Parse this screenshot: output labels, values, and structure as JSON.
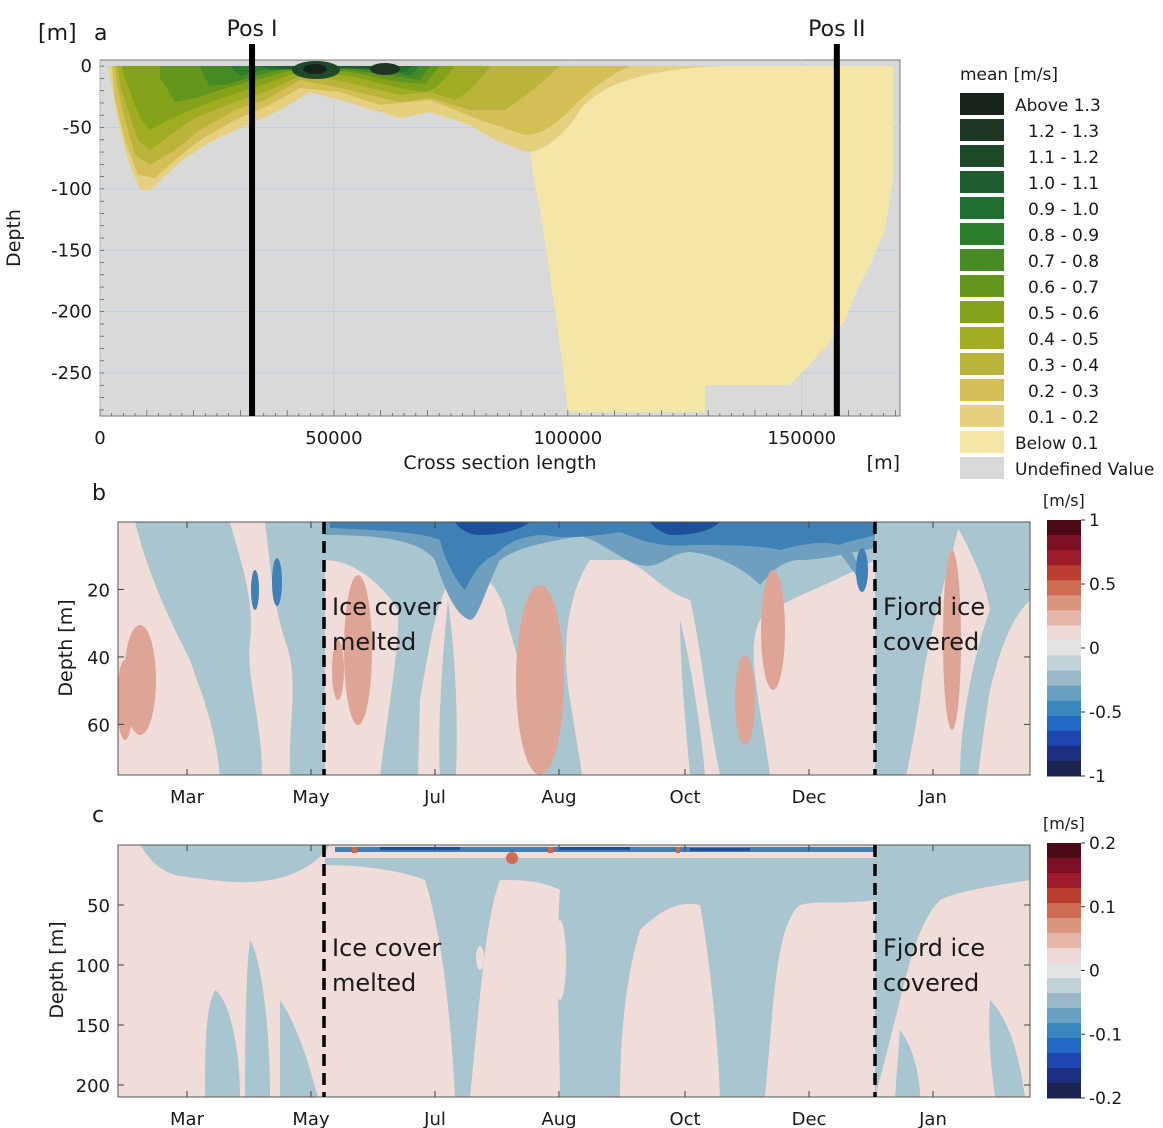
{
  "chart_data": [
    {
      "panel": "a",
      "type": "heatmap",
      "panel_label": "a",
      "ylabel": "Depth",
      "yunit": "[m]",
      "xlabel": "Cross section length",
      "xunit": "[m]",
      "xlim": [
        0,
        171000
      ],
      "ylim": [
        -285,
        5
      ],
      "xticks": [
        0,
        50000,
        100000,
        150000
      ],
      "yticks": [
        0,
        -50,
        -100,
        -150,
        -200,
        -250
      ],
      "grid": true,
      "markers": [
        {
          "label": "Pos I",
          "x": 32500
        },
        {
          "label": "Pos II",
          "x": 157500
        }
      ],
      "undefined_label": "Undefined Value",
      "legend": {
        "title": "mean [m/s]",
        "placement": "right",
        "entries": [
          {
            "label": "Above 1.3",
            "color": "#17231a"
          },
          {
            "label": "1.2 - 1.3",
            "color": "#1d3521"
          },
          {
            "label": "1.1 - 1.2",
            "color": "#1f4a29"
          },
          {
            "label": "1.0 - 1.1",
            "color": "#1f5d30"
          },
          {
            "label": "0.9 - 1.0",
            "color": "#1f7030"
          },
          {
            "label": "0.8 - 0.9",
            "color": "#2c7d2c"
          },
          {
            "label": "0.7 - 0.8",
            "color": "#468a23"
          },
          {
            "label": "0.6 - 0.7",
            "color": "#64951c"
          },
          {
            "label": "0.5 - 0.6",
            "color": "#83a21a"
          },
          {
            "label": "0.4 - 0.5",
            "color": "#a0ac22"
          },
          {
            "label": "0.3 - 0.4",
            "color": "#bbb43a"
          },
          {
            "label": "0.2 - 0.3",
            "color": "#d3bf55"
          },
          {
            "label": "0.1 - 0.2",
            "color": "#e5d07f"
          },
          {
            "label": "Below 0.1",
            "color": "#f3e6a6"
          },
          {
            "label": "Undefined Value",
            "color": "#d9d9d9"
          }
        ]
      }
    },
    {
      "panel": "b",
      "type": "heatmap",
      "panel_label": "b",
      "ylabel": "Depth [m]",
      "ylim": [
        75,
        0
      ],
      "yticks": [
        20,
        40,
        60
      ],
      "x_categories": [
        "Mar",
        "May",
        "Jul",
        "Aug",
        "Oct",
        "Dec",
        "Jan"
      ],
      "events": [
        {
          "label_lines": [
            "Ice cover",
            "melted"
          ],
          "month": "May"
        },
        {
          "label_lines": [
            "Fjord ice",
            "covered"
          ],
          "month": "Dec"
        }
      ],
      "colorbar": {
        "unit": "[m/s]",
        "range": [
          -1,
          1
        ],
        "ticks": [
          {
            "v": 1,
            "label": "1"
          },
          {
            "v": 0.5,
            "label": "0.5"
          },
          {
            "v": 0,
            "label": "0"
          },
          {
            "v": -0.5,
            "label": "-0.5"
          },
          {
            "v": -1,
            "label": "-1"
          }
        ]
      }
    },
    {
      "panel": "c",
      "type": "heatmap",
      "panel_label": "c",
      "ylabel": "Depth [m]",
      "ylim": [
        210,
        0
      ],
      "yticks": [
        50,
        100,
        150,
        200
      ],
      "x_categories": [
        "Mar",
        "May",
        "Jul",
        "Aug",
        "Oct",
        "Dec",
        "Jan"
      ],
      "events": [
        {
          "label_lines": [
            "Ice cover",
            "melted"
          ],
          "month": "May"
        },
        {
          "label_lines": [
            "Fjord ice",
            "covered"
          ],
          "month": "Dec"
        }
      ],
      "colorbar": {
        "unit": "[m/s]",
        "range": [
          -0.2,
          0.2
        ],
        "ticks": [
          {
            "v": 0.2,
            "label": "0.2"
          },
          {
            "v": 0.1,
            "label": "0.1"
          },
          {
            "v": 0,
            "label": "0"
          },
          {
            "v": -0.1,
            "label": "-0.1"
          },
          {
            "v": -0.2,
            "label": "-0.2"
          }
        ]
      }
    }
  ],
  "palette": {
    "diverging": [
      "#1c2450",
      "#1d2f80",
      "#1f45b0",
      "#2169c5",
      "#3a87c0",
      "#6aa0c1",
      "#9ab8c8",
      "#c1d2d9",
      "#e3e3e3",
      "#edd9d6",
      "#e4b5a8",
      "#da957f",
      "#cd6c52",
      "#bb3e31",
      "#a01c2c",
      "#7d1024",
      "#4d0a17"
    ],
    "neg_light": "#a9c5cf",
    "pos_light": "#f0dcd8",
    "pos_mid": "#dea597",
    "neg_mid": "#6f9fbe",
    "neg_dark": "#3f80b5",
    "neg_deep": "#1d4f9b"
  }
}
